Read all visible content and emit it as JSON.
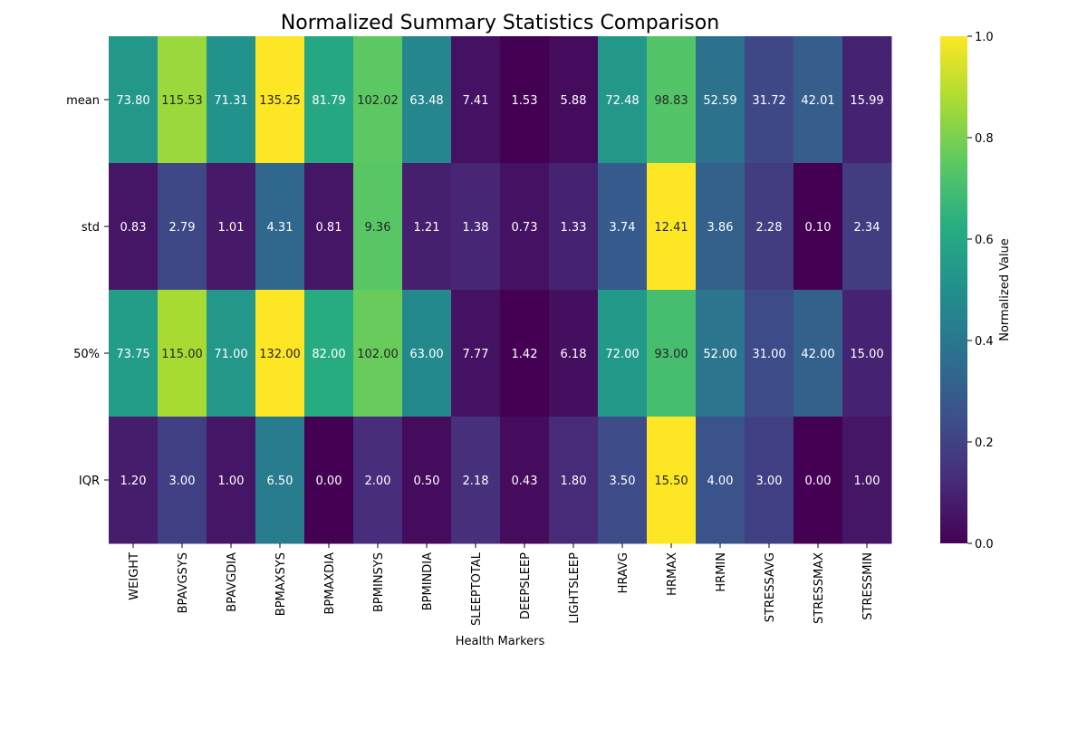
{
  "chart_data": {
    "type": "heatmap",
    "title": "Normalized Summary Statistics Comparison",
    "xlabel": "Health Markers",
    "ylabel": "",
    "x_categories": [
      "WEIGHT",
      "BPAVGSYS",
      "BPAVGDIA",
      "BPMAXSYS",
      "BPMAXDIA",
      "BPMINSYS",
      "BPMINDIA",
      "SLEEPTOTAL",
      "DEEPSLEEP",
      "LIGHTSLEEP",
      "HRAVG",
      "HRMAX",
      "HRMIN",
      "STRESSAVG",
      "STRESSMAX",
      "STRESSMIN"
    ],
    "y_categories": [
      "mean",
      "std",
      "50%",
      "IQR"
    ],
    "annotations": [
      [
        "73.80",
        "115.53",
        "71.31",
        "135.25",
        "81.79",
        "102.02",
        "63.48",
        "7.41",
        "1.53",
        "5.88",
        "72.48",
        "98.83",
        "52.59",
        "31.72",
        "42.01",
        "15.99"
      ],
      [
        "0.83",
        "2.79",
        "1.01",
        "4.31",
        "0.81",
        "9.36",
        "1.21",
        "1.38",
        "0.73",
        "1.33",
        "3.74",
        "12.41",
        "3.86",
        "2.28",
        "0.10",
        "2.34"
      ],
      [
        "73.75",
        "115.00",
        "71.00",
        "132.00",
        "82.00",
        "102.00",
        "63.00",
        "7.77",
        "1.42",
        "6.18",
        "72.00",
        "93.00",
        "52.00",
        "31.00",
        "42.00",
        "15.00"
      ],
      [
        "1.20",
        "3.00",
        "1.00",
        "6.50",
        "0.00",
        "2.00",
        "0.50",
        "2.18",
        "0.43",
        "1.80",
        "3.50",
        "15.50",
        "4.00",
        "3.00",
        "0.00",
        "1.00"
      ]
    ],
    "normalized_values": [
      [
        0.53,
        0.85,
        0.51,
        1.0,
        0.6,
        0.75,
        0.46,
        0.05,
        0.0,
        0.03,
        0.53,
        0.73,
        0.38,
        0.22,
        0.3,
        0.1
      ],
      [
        0.06,
        0.22,
        0.07,
        0.34,
        0.06,
        0.74,
        0.09,
        0.11,
        0.05,
        0.1,
        0.29,
        1.0,
        0.31,
        0.18,
        0.0,
        0.18
      ],
      [
        0.55,
        0.87,
        0.53,
        1.0,
        0.62,
        0.77,
        0.47,
        0.05,
        0.0,
        0.04,
        0.54,
        0.7,
        0.39,
        0.23,
        0.31,
        0.1
      ],
      [
        0.08,
        0.19,
        0.06,
        0.42,
        0.0,
        0.13,
        0.03,
        0.14,
        0.03,
        0.12,
        0.23,
        1.0,
        0.26,
        0.19,
        0.0,
        0.06
      ]
    ],
    "colorbar": {
      "label": "Normalized Value",
      "range": [
        0,
        1
      ],
      "ticks": [
        "0.0",
        "0.2",
        "0.4",
        "0.6",
        "0.8",
        "1.0"
      ],
      "colormap": "viridis"
    },
    "grid": false
  }
}
